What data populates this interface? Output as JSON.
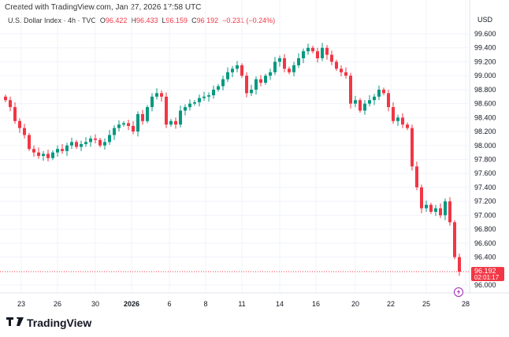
{
  "credit": "Created with TradingView.com, Jan 27, 2026 17:58 UTC",
  "legend": {
    "symbol": "U.S. Dollar Index · 4h · TVC",
    "o_label": "O",
    "o": "96.422",
    "h_label": "H",
    "h": "96.433",
    "l_label": "L",
    "l": "96.159",
    "c_label": "C",
    "c": "96.192",
    "change": "−0.231 (−0.24%)"
  },
  "logo": "TradingView",
  "colors": {
    "up": "#089981",
    "down": "#f23645",
    "grid": "#f0f3fa"
  },
  "chart_data": {
    "type": "candlestick",
    "currency": "USD",
    "ylim": [
      96.0,
      99.6
    ],
    "y_ticks": [
      "99.600",
      "99.400",
      "99.200",
      "99.000",
      "98.800",
      "98.600",
      "98.400",
      "98.200",
      "98.000",
      "97.800",
      "97.600",
      "97.400",
      "97.200",
      "97.000",
      "96.800",
      "96.600",
      "96.400",
      "96.000"
    ],
    "x_ticks": [
      "23",
      "26",
      "30",
      "2026",
      "6",
      "8",
      "11",
      "14",
      "16",
      "20",
      "22",
      "25",
      "28"
    ],
    "closes": [
      98.65,
      98.55,
      98.35,
      98.25,
      98.15,
      97.95,
      97.9,
      97.85,
      97.88,
      97.82,
      97.9,
      97.95,
      97.92,
      98.0,
      98.05,
      97.98,
      98.02,
      98.05,
      98.1,
      98.08,
      98.0,
      98.05,
      98.15,
      98.25,
      98.3,
      98.32,
      98.28,
      98.2,
      98.45,
      98.35,
      98.55,
      98.7,
      98.75,
      98.7,
      98.3,
      98.35,
      98.3,
      98.5,
      98.55,
      98.6,
      98.62,
      98.68,
      98.7,
      98.72,
      98.8,
      98.85,
      98.95,
      99.05,
      99.1,
      99.15,
      99.0,
      98.75,
      98.8,
      98.95,
      98.9,
      99.0,
      99.05,
      99.2,
      99.25,
      99.1,
      99.05,
      99.15,
      99.25,
      99.35,
      99.4,
      99.35,
      99.25,
      99.4,
      99.3,
      99.2,
      99.1,
      99.05,
      99.0,
      98.6,
      98.65,
      98.5,
      98.6,
      98.65,
      98.7,
      98.8,
      98.75,
      98.55,
      98.35,
      98.4,
      98.3,
      98.25,
      97.7,
      97.4,
      97.1,
      97.15,
      97.05,
      97.1,
      97.0,
      97.2,
      96.9,
      96.4,
      96.192
    ],
    "last_price": "96.192",
    "countdown": "02:01:17"
  }
}
